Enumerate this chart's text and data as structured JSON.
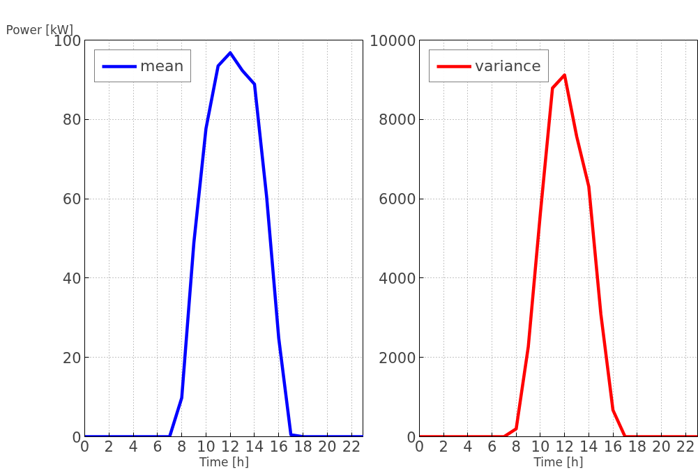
{
  "chart_data": [
    {
      "type": "line",
      "ylabel": "Power [kW]",
      "xlabel": "Time [h]",
      "x": [
        0,
        1,
        2,
        3,
        4,
        5,
        6,
        7,
        8,
        9,
        10,
        11,
        12,
        13,
        14,
        15,
        16,
        17,
        18,
        19,
        20,
        21,
        22,
        23
      ],
      "series": [
        {
          "name": "mean",
          "color": "#0000ff",
          "values": [
            0,
            0,
            0,
            0,
            0,
            0,
            0,
            0,
            9.8,
            48.9,
            77.7,
            93.5,
            96.8,
            92.3,
            88.9,
            60.5,
            24.8,
            0.5,
            0,
            0,
            0,
            0,
            0,
            0
          ]
        }
      ],
      "xlim": [
        0,
        23
      ],
      "xticks": [
        0,
        2,
        4,
        6,
        8,
        10,
        12,
        14,
        16,
        18,
        20,
        22
      ],
      "ylim": [
        0,
        100
      ],
      "yticks": [
        0,
        20,
        40,
        60,
        80,
        100
      ],
      "grid": true,
      "legend": "top left",
      "line_style": "solid"
    },
    {
      "type": "line",
      "xlabel": "Time [h]",
      "x": [
        0,
        1,
        2,
        3,
        4,
        5,
        6,
        7,
        8,
        9,
        10,
        11,
        12,
        13,
        14,
        15,
        16,
        17,
        18,
        19,
        20,
        21,
        22,
        23
      ],
      "series": [
        {
          "name": "variance",
          "color": "#ff0000",
          "values": [
            0,
            0,
            0,
            0,
            0,
            0,
            0,
            0,
            200,
            2270,
            5640,
            8790,
            9120,
            7570,
            6310,
            3090,
            670,
            0,
            0,
            0,
            0,
            0,
            0,
            0
          ]
        }
      ],
      "xlim": [
        0,
        23
      ],
      "xticks": [
        0,
        2,
        4,
        6,
        8,
        10,
        12,
        14,
        16,
        18,
        20,
        22
      ],
      "ylim": [
        0,
        10000
      ],
      "yticks": [
        0,
        2000,
        4000,
        6000,
        8000,
        10000
      ],
      "grid": true,
      "legend": "top left",
      "line_style": "solid"
    }
  ]
}
